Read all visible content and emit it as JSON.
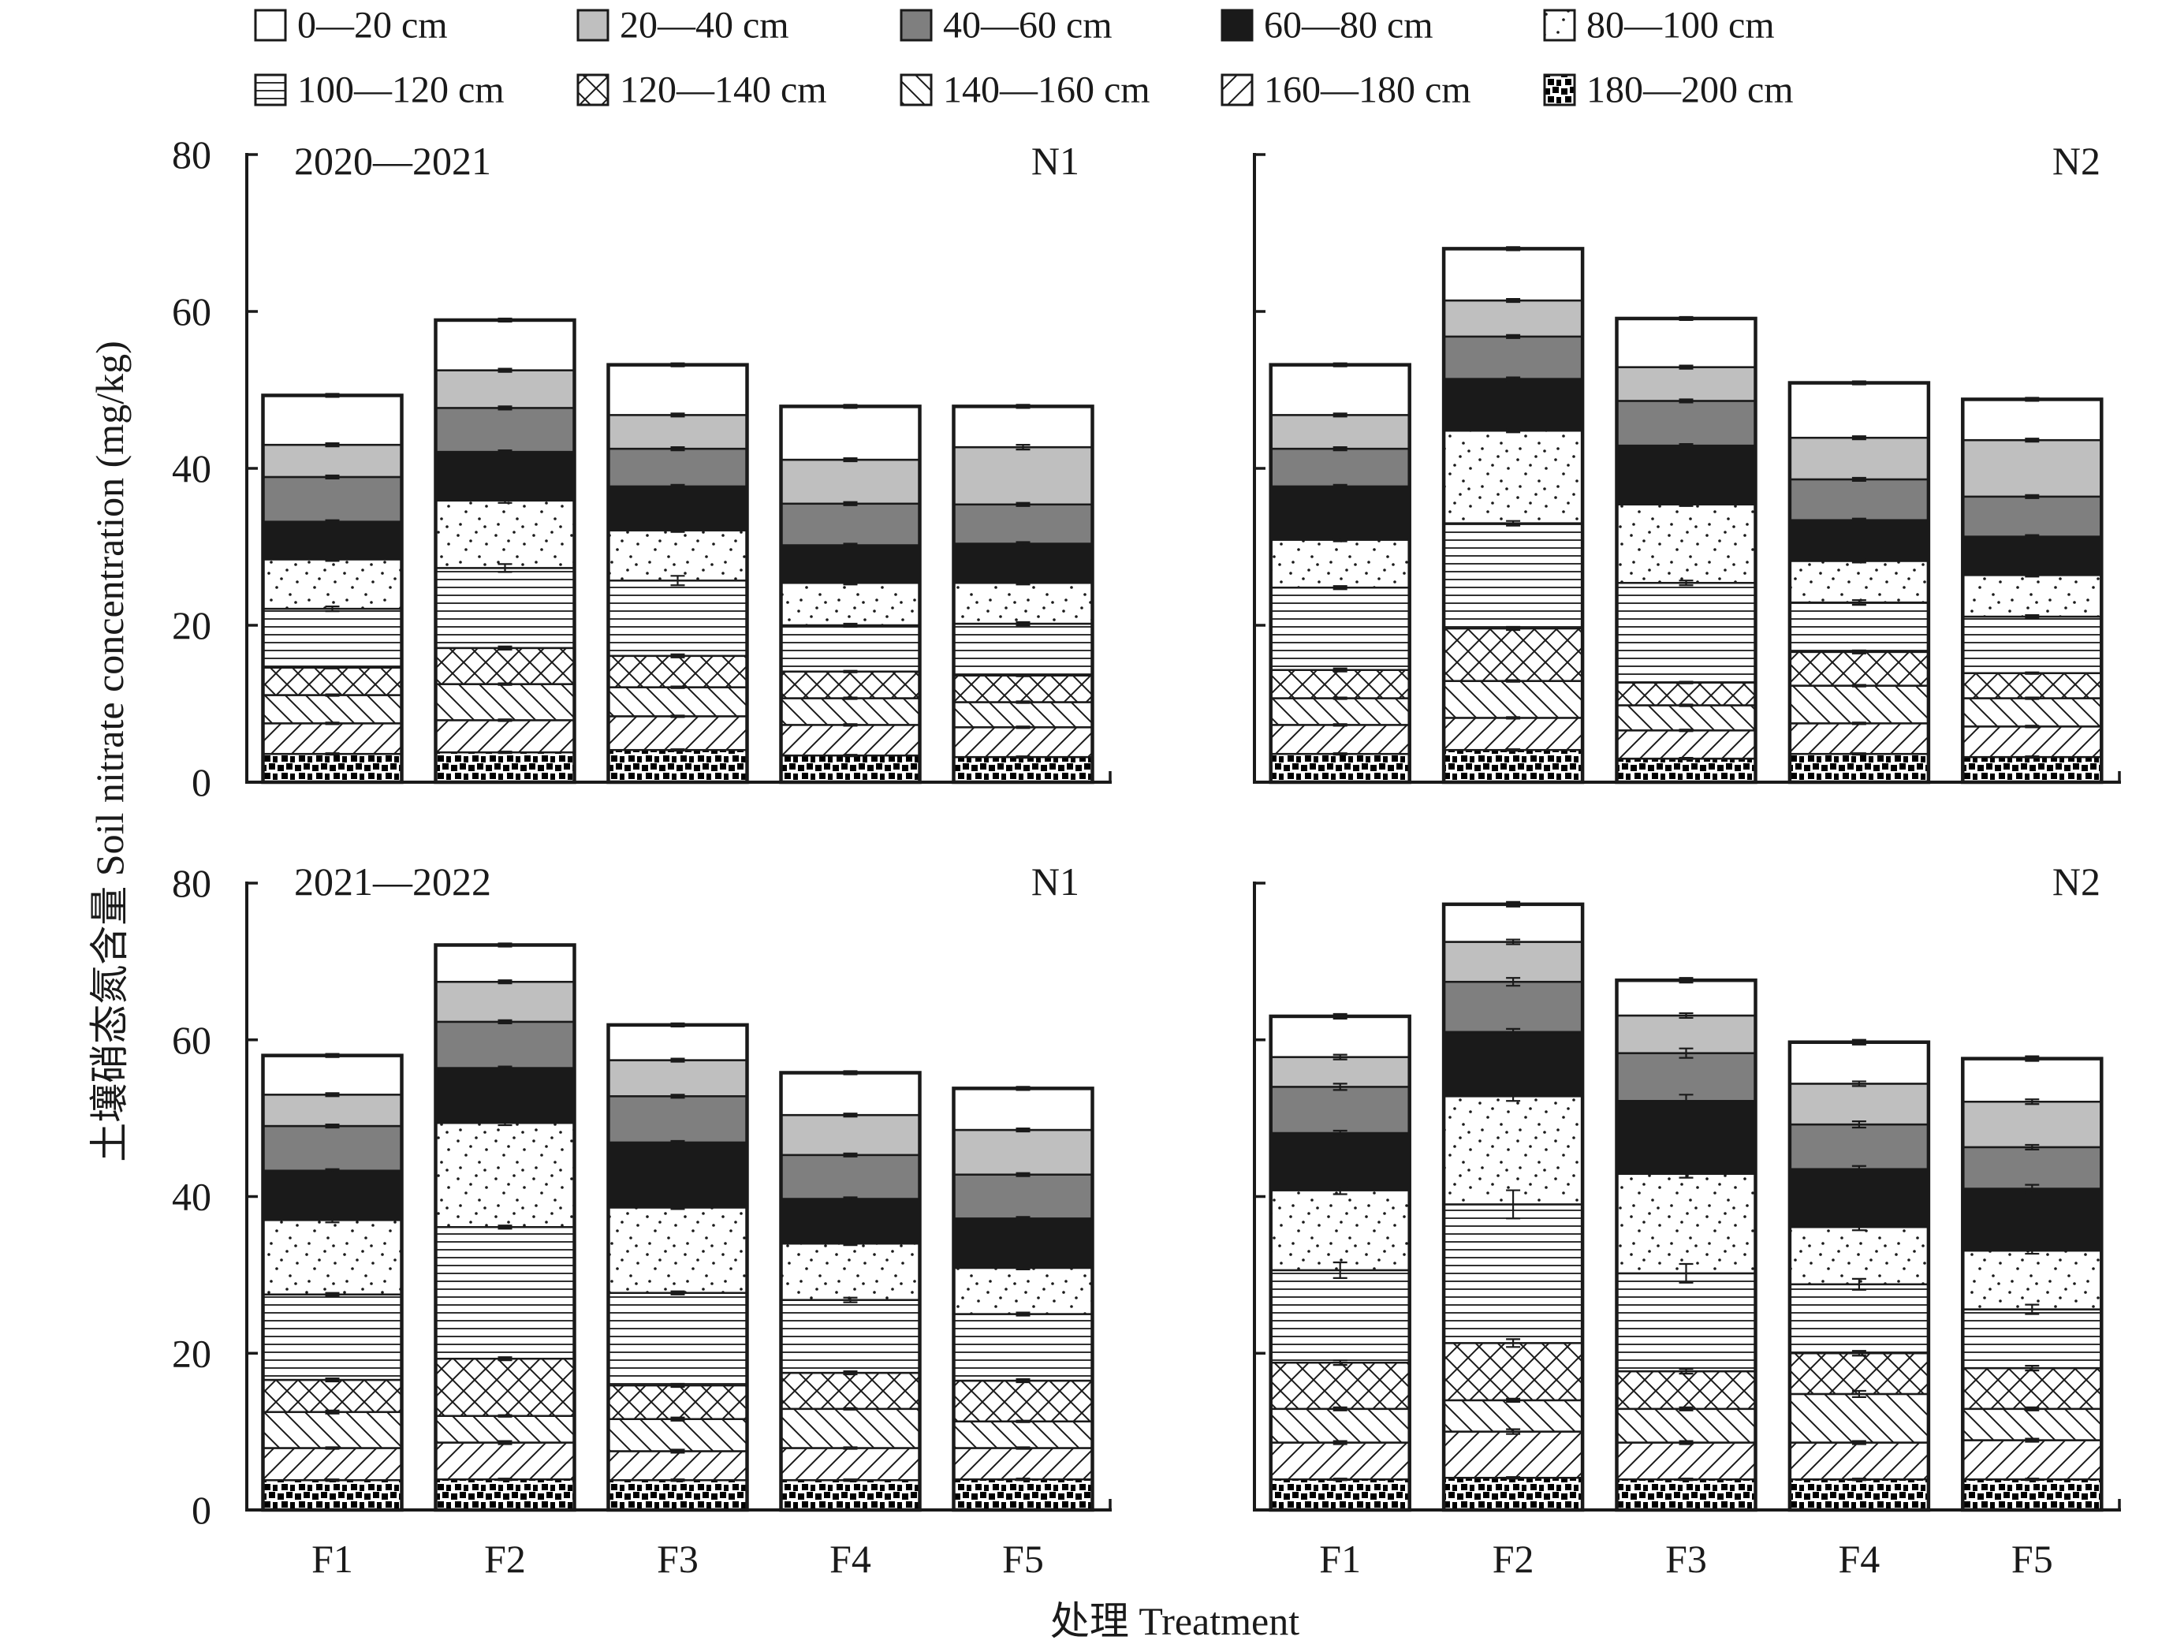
{
  "chart_data": {
    "type": "bar",
    "stacked": true,
    "categories": [
      "F1",
      "F2",
      "F3",
      "F4",
      "F5"
    ],
    "xlabel": "处理 Treatment",
    "ylabel": "土壤硝态氮含量 Soil nitrate concentration (mg/kg)",
    "ylim": [
      0,
      80
    ],
    "yticks": [
      0,
      20,
      40,
      60,
      80
    ],
    "legend_position": "top",
    "series": [
      {
        "name": "0—20 cm",
        "fill": "#ffffff",
        "pattern": "solid"
      },
      {
        "name": "20—40 cm",
        "fill": "#bfbfbf",
        "pattern": "solid"
      },
      {
        "name": "40—60 cm",
        "fill": "#7f7f7f",
        "pattern": "solid"
      },
      {
        "name": "60—80 cm",
        "fill": "#1a1a1a",
        "pattern": "solid"
      },
      {
        "name": "80—100 cm",
        "fill": "#ffffff",
        "pattern": "dots"
      },
      {
        "name": "100—120 cm",
        "fill": "#ffffff",
        "pattern": "horizontal-lines"
      },
      {
        "name": "120—140 cm",
        "fill": "#ffffff",
        "pattern": "cross-hatch"
      },
      {
        "name": "140—160 cm",
        "fill": "#ffffff",
        "pattern": "backward-diagonal"
      },
      {
        "name": "160—180 cm",
        "fill": "#ffffff",
        "pattern": "forward-diagonal"
      },
      {
        "name": "180—200 cm",
        "fill": "#000000",
        "pattern": "checker"
      }
    ],
    "panels": [
      {
        "period_label": "2020—2021",
        "nitrogen_label": "N1",
        "values": [
          [
            6.3,
            6.4,
            6.4,
            6.8,
            5.2
          ],
          [
            4.1,
            4.8,
            4.3,
            5.6,
            7.3
          ],
          [
            5.7,
            5.6,
            4.8,
            5.3,
            5.0
          ],
          [
            4.8,
            6.2,
            5.6,
            4.8,
            5.0
          ],
          [
            6.3,
            8.6,
            6.4,
            5.4,
            5.2
          ],
          [
            7.5,
            10.2,
            9.6,
            5.9,
            6.6
          ],
          [
            3.5,
            4.6,
            4.0,
            3.4,
            3.4
          ],
          [
            3.6,
            4.6,
            3.7,
            3.4,
            3.2
          ],
          [
            3.9,
            4.1,
            4.3,
            3.9,
            3.8
          ],
          [
            3.6,
            3.8,
            4.1,
            3.4,
            3.2
          ]
        ],
        "errors": [
          [
            0.2,
            0.2,
            0.2,
            0.2,
            0.2
          ],
          [
            0.2,
            0.2,
            0.2,
            0.2,
            0.3
          ],
          [
            0.2,
            0.2,
            0.2,
            0.2,
            0.2
          ],
          [
            0.2,
            0.2,
            0.2,
            0.2,
            0.2
          ],
          [
            0.2,
            0.3,
            0.2,
            0.2,
            0.2
          ],
          [
            0.3,
            0.5,
            0.6,
            0.2,
            0.2
          ],
          [
            0.1,
            0.2,
            0.2,
            0.1,
            0.1
          ],
          [
            0.1,
            0.1,
            0.1,
            0.1,
            0.1
          ],
          [
            0.1,
            0.1,
            0.1,
            0.1,
            0.1
          ],
          [
            0.1,
            0.1,
            0.1,
            0.1,
            0.1
          ]
        ]
      },
      {
        "nitrogen_label": "N2",
        "values": [
          [
            6.4,
            6.6,
            6.2,
            7.0,
            5.2
          ],
          [
            4.3,
            4.6,
            4.3,
            5.3,
            7.2
          ],
          [
            4.8,
            5.4,
            5.7,
            5.2,
            5.1
          ],
          [
            6.8,
            6.6,
            7.5,
            5.2,
            4.9
          ],
          [
            6.1,
            11.8,
            10.0,
            5.3,
            5.3
          ],
          [
            10.5,
            13.4,
            12.7,
            6.3,
            7.2
          ],
          [
            3.6,
            6.7,
            2.9,
            4.3,
            3.2
          ],
          [
            3.4,
            4.7,
            3.2,
            4.8,
            3.6
          ],
          [
            3.7,
            4.1,
            3.6,
            3.9,
            3.9
          ],
          [
            3.6,
            4.1,
            3.0,
            3.6,
            3.2
          ]
        ],
        "errors": [
          [
            0.2,
            0.2,
            0.2,
            0.2,
            0.2
          ],
          [
            0.2,
            0.2,
            0.2,
            0.2,
            0.2
          ],
          [
            0.2,
            0.2,
            0.2,
            0.2,
            0.2
          ],
          [
            0.2,
            0.2,
            0.2,
            0.2,
            0.2
          ],
          [
            0.2,
            0.2,
            0.2,
            0.2,
            0.2
          ],
          [
            0.2,
            0.3,
            0.3,
            0.3,
            0.2
          ],
          [
            0.2,
            0.2,
            0.1,
            0.2,
            0.1
          ],
          [
            0.1,
            0.1,
            0.1,
            0.1,
            0.1
          ],
          [
            0.1,
            0.1,
            0.1,
            0.1,
            0.1
          ],
          [
            0.1,
            0.1,
            0.1,
            0.1,
            0.1
          ]
        ]
      },
      {
        "period_label": "2021—2022",
        "nitrogen_label": "N1",
        "values": [
          [
            5.0,
            4.7,
            4.5,
            5.4,
            5.3
          ],
          [
            4.0,
            5.1,
            4.6,
            5.1,
            5.7
          ],
          [
            5.7,
            5.9,
            5.9,
            5.6,
            5.6
          ],
          [
            6.3,
            7.0,
            8.3,
            5.7,
            6.3
          ],
          [
            9.5,
            13.3,
            10.9,
            7.2,
            5.9
          ],
          [
            10.9,
            16.8,
            11.8,
            9.3,
            8.5
          ],
          [
            4.1,
            7.3,
            4.3,
            4.6,
            5.2
          ],
          [
            4.6,
            3.4,
            4.1,
            5.0,
            3.4
          ],
          [
            4.1,
            4.7,
            3.7,
            4.1,
            4.0
          ],
          [
            3.8,
            3.9,
            3.8,
            3.8,
            3.9
          ]
        ],
        "errors": [
          [
            0.2,
            0.2,
            0.2,
            0.2,
            0.2
          ],
          [
            0.2,
            0.2,
            0.2,
            0.2,
            0.2
          ],
          [
            0.2,
            0.2,
            0.2,
            0.2,
            0.2
          ],
          [
            0.2,
            0.2,
            0.2,
            0.2,
            0.2
          ],
          [
            0.3,
            0.3,
            0.2,
            0.2,
            0.2
          ],
          [
            0.2,
            0.2,
            0.2,
            0.3,
            0.2
          ],
          [
            0.2,
            0.2,
            0.2,
            0.2,
            0.2
          ],
          [
            0.2,
            0.1,
            0.2,
            0.1,
            0.1
          ],
          [
            0.1,
            0.2,
            0.2,
            0.1,
            0.1
          ],
          [
            0.1,
            0.1,
            0.1,
            0.1,
            0.1
          ]
        ]
      },
      {
        "nitrogen_label": "N2",
        "values": [
          [
            5.2,
            4.8,
            4.5,
            5.3,
            5.5
          ],
          [
            3.8,
            5.1,
            4.8,
            5.2,
            5.8
          ],
          [
            5.9,
            6.4,
            6.1,
            5.7,
            5.3
          ],
          [
            7.3,
            8.2,
            9.3,
            7.4,
            7.9
          ],
          [
            10.2,
            13.8,
            12.7,
            7.3,
            7.5
          ],
          [
            11.8,
            17.7,
            12.5,
            8.8,
            7.5
          ],
          [
            5.9,
            7.3,
            4.8,
            5.2,
            5.2
          ],
          [
            4.3,
            4.0,
            4.3,
            6.2,
            4.0
          ],
          [
            4.7,
            5.9,
            4.7,
            4.7,
            5.0
          ],
          [
            3.9,
            4.1,
            3.9,
            3.9,
            3.9
          ]
        ],
        "errors": [
          [
            0.3,
            0.3,
            0.3,
            0.3,
            0.3
          ],
          [
            0.3,
            0.3,
            0.3,
            0.3,
            0.3
          ],
          [
            0.4,
            0.5,
            0.6,
            0.4,
            0.3
          ],
          [
            0.3,
            0.4,
            0.8,
            0.4,
            0.5
          ],
          [
            0.5,
            0.6,
            0.5,
            0.4,
            0.4
          ],
          [
            1.0,
            1.8,
            1.2,
            0.7,
            0.6
          ],
          [
            0.3,
            0.5,
            0.3,
            0.3,
            0.3
          ],
          [
            0.2,
            0.2,
            0.2,
            0.4,
            0.2
          ],
          [
            0.2,
            0.3,
            0.2,
            0.2,
            0.2
          ],
          [
            0.1,
            0.1,
            0.1,
            0.1,
            0.1
          ]
        ]
      }
    ]
  }
}
